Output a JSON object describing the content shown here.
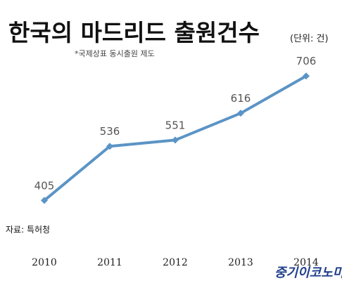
{
  "header": {
    "title": "한국의 마드리드 출원건수",
    "unit": "(단위: 건)",
    "subtitle": "*국제상표 동시출원 제도"
  },
  "footer": {
    "source": "자료: 특허청",
    "logo": "중기이코노미"
  },
  "chart_data": {
    "type": "line",
    "title": "한국의 마드리드 출원건수",
    "subtitle": "*국제상표 동시출원 제도",
    "x": [
      "2010",
      "2011",
      "2012",
      "2013",
      "2014"
    ],
    "series": [
      {
        "values": [
          405,
          536,
          551,
          616,
          706
        ]
      }
    ],
    "data_labels": [
      "405",
      "536",
      "551",
      "616",
      "706"
    ],
    "xlabel": "",
    "ylabel": "",
    "ylim": [
      380,
      720
    ],
    "grid": false,
    "legend": "none",
    "line_color": "#5b94c6",
    "marker_color": "#5b94c6"
  }
}
